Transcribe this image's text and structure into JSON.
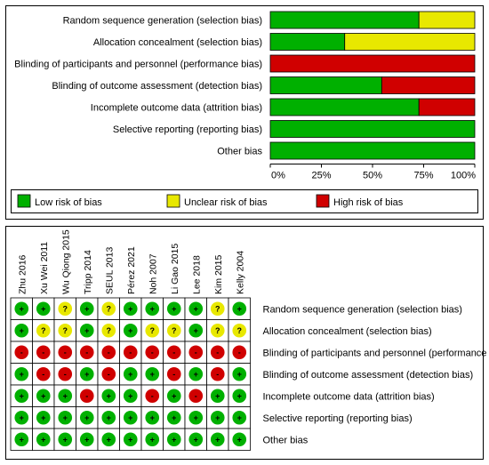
{
  "colors": {
    "low": "#00B000",
    "unclear": "#E8E800",
    "high": "#D00000"
  },
  "chart_data": [
    {
      "type": "bar",
      "orientation": "horizontal-stacked-percent",
      "categories": [
        "Random sequence generation (selection bias)",
        "Allocation concealment (selection bias)",
        "Blinding of participants and personnel (performance bias)",
        "Blinding of outcome assessment (detection bias)",
        "Incomplete outcome data (attrition bias)",
        "Selective reporting (reporting bias)",
        "Other bias"
      ],
      "series": [
        {
          "name": "Low risk of bias",
          "color": "#00B000",
          "values": [
            72.7,
            36.4,
            0,
            54.5,
            72.7,
            100,
            100
          ]
        },
        {
          "name": "Unclear risk of bias",
          "color": "#E8E800",
          "values": [
            27.3,
            63.6,
            0,
            0,
            0,
            0,
            0
          ]
        },
        {
          "name": "High risk of bias",
          "color": "#D00000",
          "values": [
            0,
            0,
            100,
            45.5,
            27.3,
            0,
            0
          ]
        }
      ],
      "xticks": [
        "0%",
        "25%",
        "50%",
        "75%",
        "100%"
      ],
      "xlim": [
        0,
        100
      ],
      "legend_position": "bottom"
    },
    {
      "type": "table",
      "studies": [
        "Zhu 2016",
        "Xu Wei 2011",
        "Wu Qiong 2015",
        "Tripp 2014",
        "SEUL 2013",
        "Pérez 2021",
        "Noh 2007",
        "Li Gao 2015",
        "Lee 2018",
        "Kim 2015",
        "Kelly 2004"
      ],
      "domains": [
        "Random sequence generation (selection bias)",
        "Allocation concealment (selection bias)",
        "Blinding of participants and personnel (performance bias)",
        "Blinding of outcome assessment (detection bias)",
        "Incomplete outcome data (attrition bias)",
        "Selective reporting (reporting bias)",
        "Other bias"
      ],
      "judgements": [
        [
          "+",
          "+",
          "?",
          "+",
          "?",
          "+",
          "+",
          "+",
          "+",
          "?",
          "+"
        ],
        [
          "+",
          "?",
          "?",
          "+",
          "?",
          "+",
          "?",
          "?",
          "+",
          "?",
          "?"
        ],
        [
          "-",
          "-",
          "-",
          "-",
          "-",
          "-",
          "-",
          "-",
          "-",
          "-",
          "-"
        ],
        [
          "+",
          "-",
          "-",
          "+",
          "-",
          "+",
          "+",
          "-",
          "+",
          "-",
          "+"
        ],
        [
          "+",
          "+",
          "+",
          "-",
          "+",
          "+",
          "-",
          "+",
          "-",
          "+",
          "+"
        ],
        [
          "+",
          "+",
          "+",
          "+",
          "+",
          "+",
          "+",
          "+",
          "+",
          "+",
          "+"
        ],
        [
          "+",
          "+",
          "+",
          "+",
          "+",
          "+",
          "+",
          "+",
          "+",
          "+",
          "+"
        ]
      ],
      "symbols": {
        "low": "+",
        "unclear": "?",
        "high": "-"
      }
    }
  ]
}
